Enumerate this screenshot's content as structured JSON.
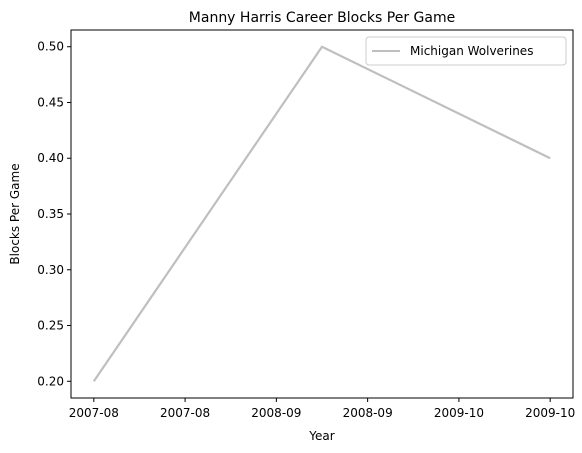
{
  "chart_data": {
    "type": "line",
    "title": "Manny Harris Career Blocks Per Game",
    "xlabel": "Year",
    "ylabel": "Blocks Per Game",
    "x_tick_labels": [
      "2007-08",
      "2007-08",
      "2008-09",
      "2008-09",
      "2009-10",
      "2009-10"
    ],
    "x_range": [
      -0.1,
      2.1
    ],
    "ylim": [
      0.185,
      0.515
    ],
    "y_ticks": [
      0.2,
      0.25,
      0.3,
      0.35,
      0.4,
      0.45,
      0.5
    ],
    "grid": false,
    "legend_position": "top-right",
    "series": [
      {
        "name": "Michigan Wolverines",
        "color": "#bfbfbf",
        "x": [
          "2007-08",
          "2008-09",
          "2009-10"
        ],
        "values": [
          0.2,
          0.5,
          0.4
        ]
      }
    ]
  }
}
